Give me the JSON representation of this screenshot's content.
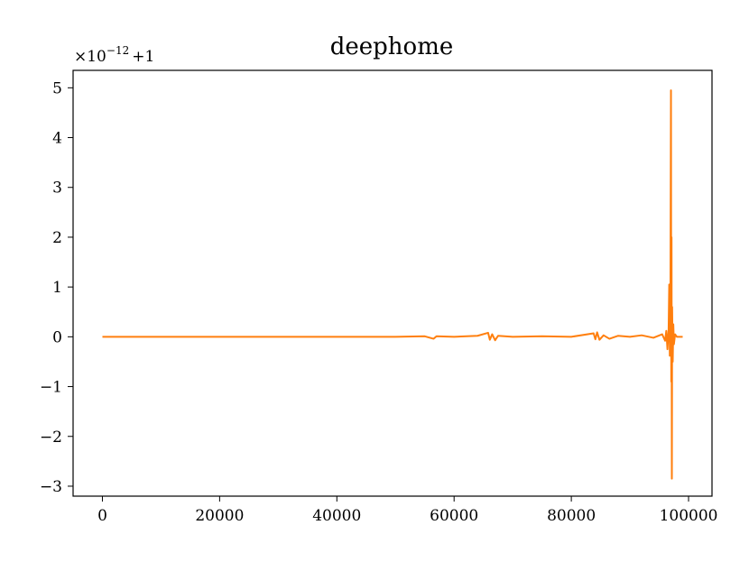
{
  "chart_data": {
    "type": "line",
    "title": "deephome",
    "xlabel": "",
    "ylabel": "",
    "offset_label": {
      "prefix": "×10",
      "exponent": "−12",
      "suffix": "+1"
    },
    "xlim": [
      -5000,
      104000
    ],
    "ylim": [
      -3.2,
      5.35
    ],
    "x_ticks": [
      0,
      20000,
      40000,
      60000,
      80000,
      100000
    ],
    "x_tick_labels": [
      "0",
      "20000",
      "40000",
      "60000",
      "80000",
      "100000"
    ],
    "y_ticks": [
      -3,
      -2,
      -1,
      0,
      1,
      2,
      3,
      4,
      5
    ],
    "y_tick_labels": [
      "−3",
      "−2",
      "−1",
      "0",
      "1",
      "2",
      "3",
      "4",
      "5"
    ],
    "grid": false,
    "series": [
      {
        "color": "#ff7f0e",
        "x": [
          0,
          10000,
          20000,
          30000,
          40000,
          50000,
          55000,
          56500,
          57000,
          60000,
          64000,
          65800,
          66100,
          66500,
          67000,
          67500,
          70000,
          75000,
          80000,
          83800,
          84100,
          84400,
          84800,
          85500,
          86500,
          88000,
          90000,
          92000,
          94000,
          95500,
          96000,
          96200,
          96400,
          96600,
          96700,
          96800,
          96900,
          97000,
          97050,
          97100,
          97150,
          97200,
          97300,
          97400,
          97500,
          97700,
          98000,
          99000
        ],
        "y": [
          0,
          0,
          0,
          0,
          0,
          0,
          0.01,
          -0.04,
          0.01,
          0,
          0.02,
          0.08,
          -0.06,
          0.05,
          -0.07,
          0.02,
          0,
          0.01,
          0,
          0.07,
          -0.05,
          0.09,
          -0.06,
          0.03,
          -0.04,
          0.02,
          0,
          0.03,
          -0.02,
          0.05,
          -0.08,
          0.12,
          -0.25,
          0.15,
          1.05,
          -0.38,
          0.3,
          4.95,
          -0.9,
          2.0,
          -2.85,
          0.6,
          -0.5,
          0.25,
          -0.15,
          0.05,
          0,
          0
        ]
      }
    ]
  }
}
